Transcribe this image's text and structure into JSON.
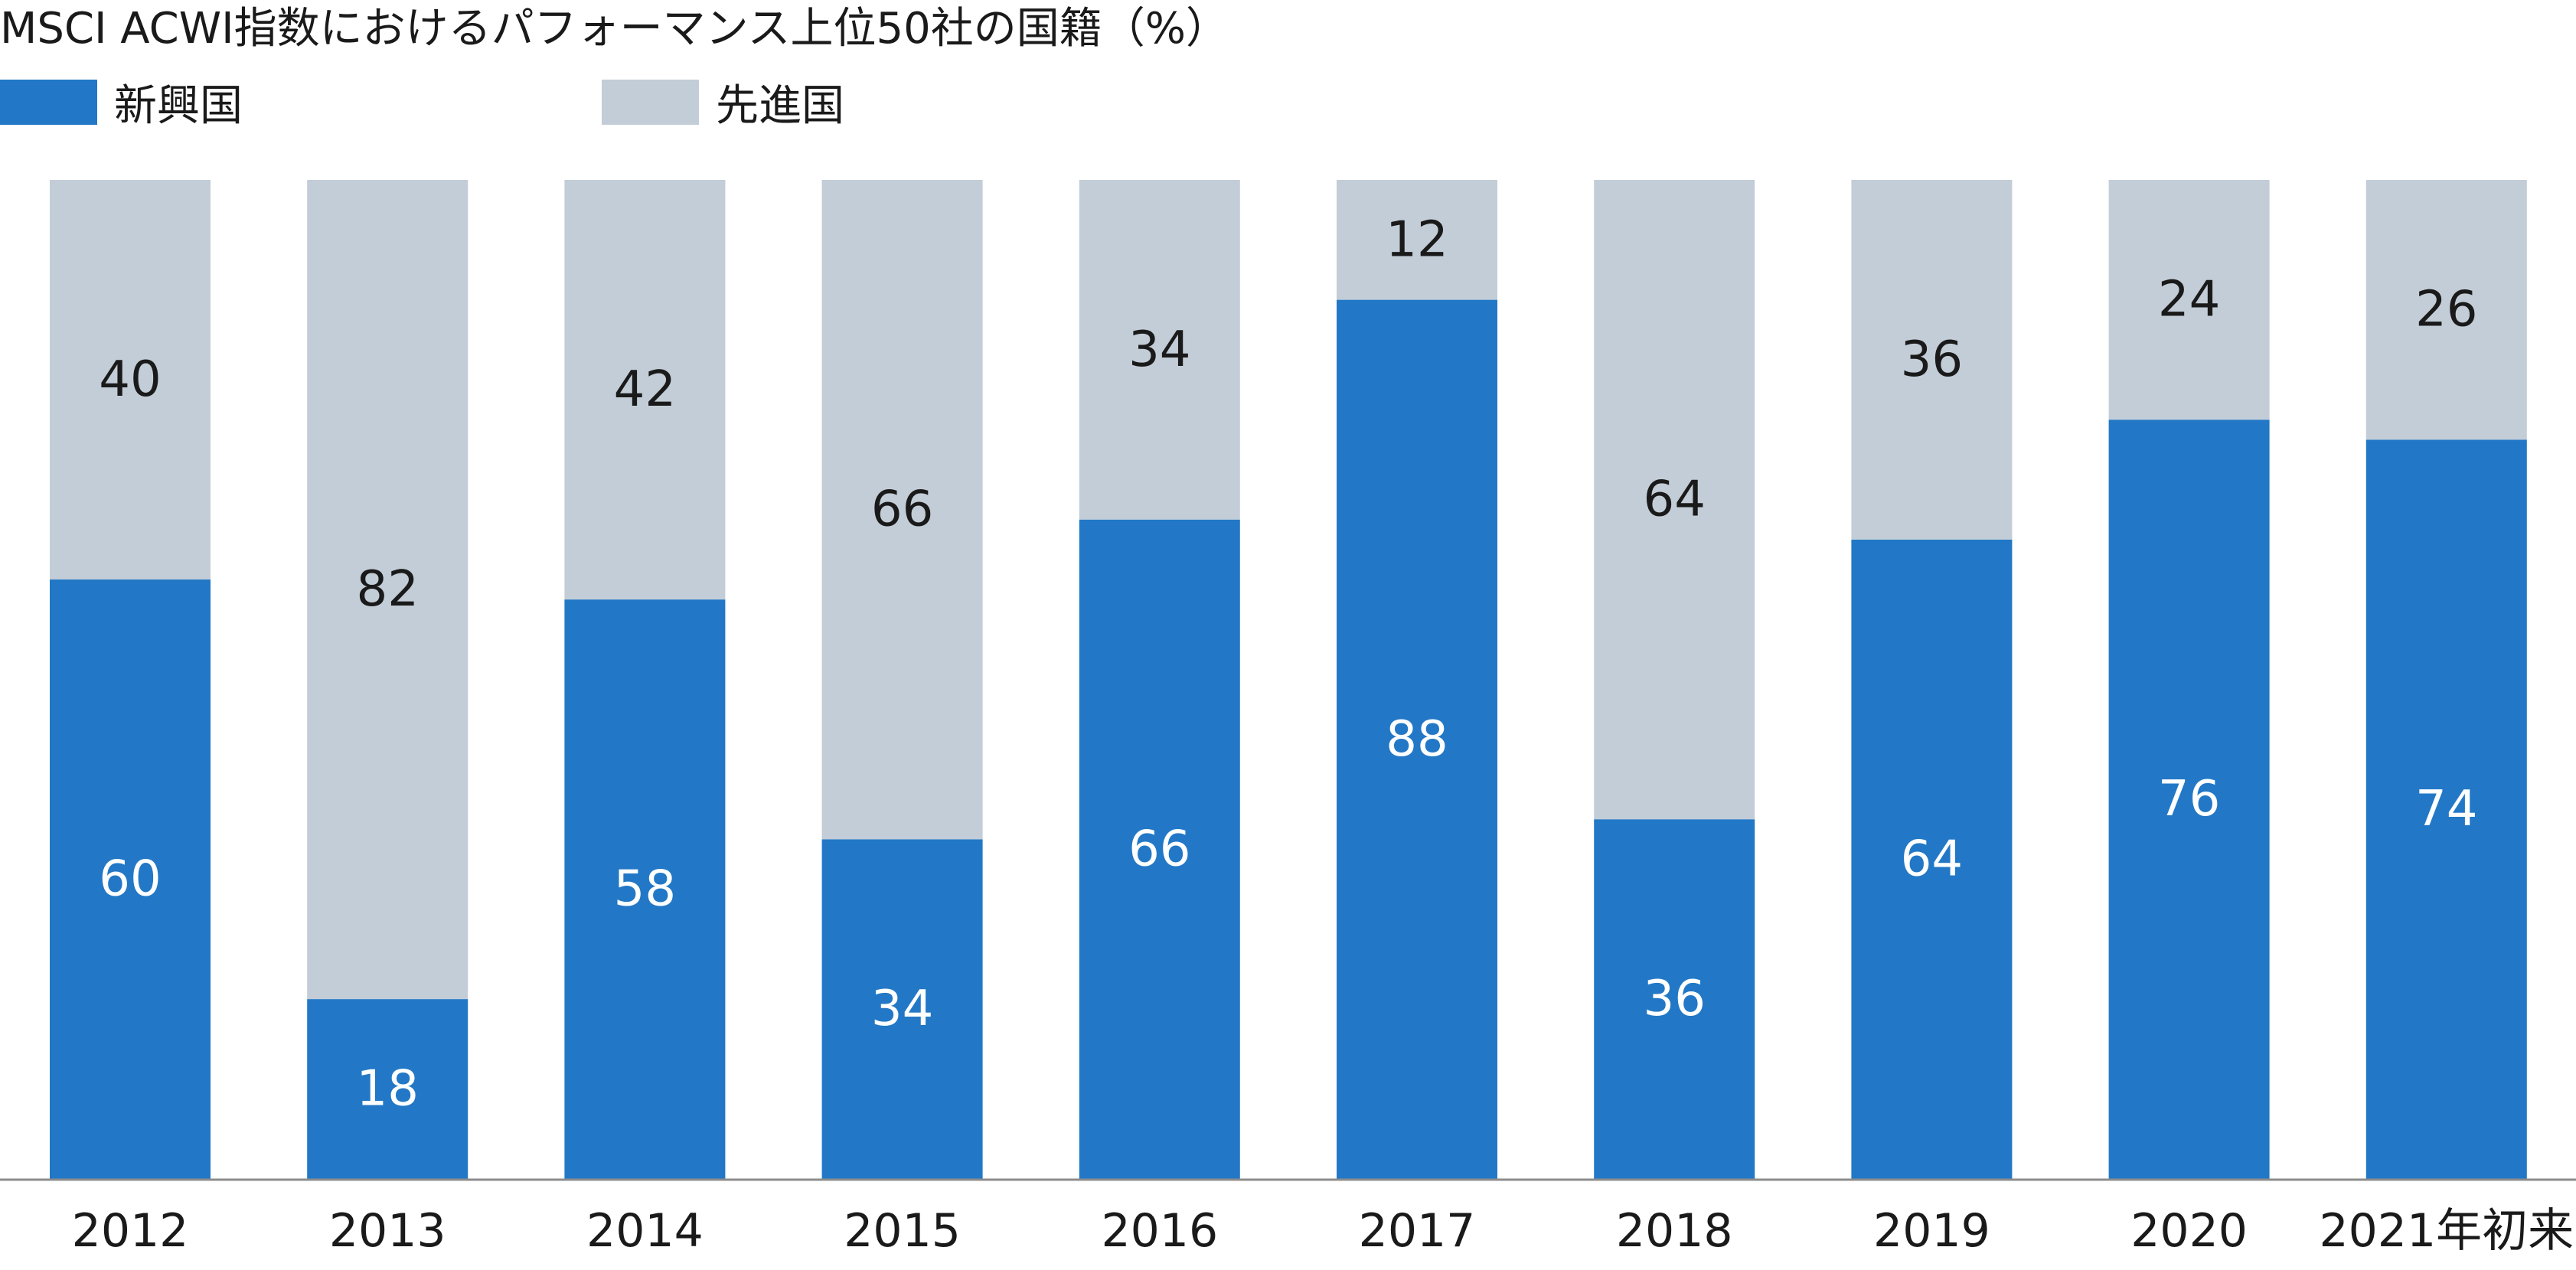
{
  "chart_data": {
    "type": "bar",
    "stacked": true,
    "title": "MSCI ACWI指数におけるパフォーマンス上位50社の国籍（%）",
    "categories": [
      "2012",
      "2013",
      "2014",
      "2015",
      "2016",
      "2017",
      "2018",
      "2019",
      "2020",
      "2021年初来"
    ],
    "series": [
      {
        "name": "新興国",
        "color": "#2278C6",
        "label_color": "#ffffff",
        "values": [
          60,
          18,
          58,
          34,
          66,
          88,
          36,
          64,
          76,
          74
        ]
      },
      {
        "name": "先進国",
        "color": "#C3CDD7",
        "label_color": "#1a1a1a",
        "values": [
          40,
          82,
          42,
          66,
          34,
          12,
          64,
          36,
          24,
          26
        ]
      }
    ],
    "ylim": [
      0,
      100
    ],
    "grid": false,
    "legend_position": "top-left",
    "axis_color": "#8C8C8C"
  }
}
